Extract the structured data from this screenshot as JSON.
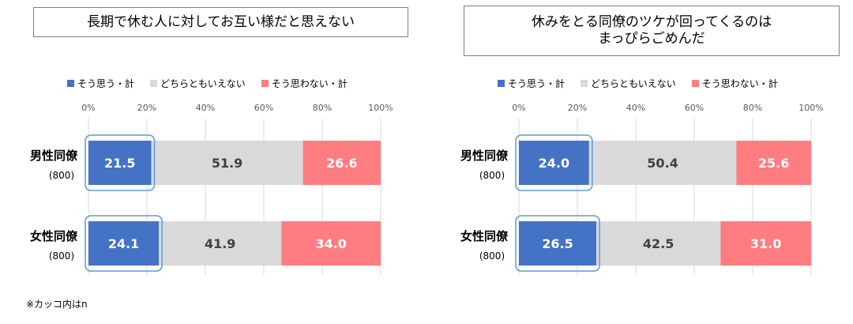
{
  "colors": {
    "agree": "#4472c4",
    "neutral": "#d9d9d9",
    "disagree": "#ff7c80",
    "highlight": "#5b9bd5"
  },
  "legend": [
    "そう思う・計",
    "どちらともいえない",
    "そう思わない・計"
  ],
  "footnote": "※カッコ内はn",
  "chart_data": [
    {
      "type": "bar",
      "orientation": "horizontal",
      "stacked": true,
      "title": "長期で休む人に対してお互い様だと思えない",
      "categories": [
        "男性同僚",
        "女性同僚"
      ],
      "category_notes": [
        "(800)",
        "(800)"
      ],
      "x_ticks": [
        "0%",
        "20%",
        "40%",
        "60%",
        "80%",
        "100%"
      ],
      "xlim": [
        0,
        100
      ],
      "grid": true,
      "legend_position": "top",
      "series": [
        {
          "name": "そう思う・計",
          "values": [
            21.5,
            24.1
          ]
        },
        {
          "name": "どちらともいえない",
          "values": [
            51.9,
            41.9
          ]
        },
        {
          "name": "そう思わない・計",
          "values": [
            26.6,
            34.0
          ]
        }
      ]
    },
    {
      "type": "bar",
      "orientation": "horizontal",
      "stacked": true,
      "title": "休みをとる同僚のツケが回ってくるのは\nまっぴらごめんだ",
      "categories": [
        "男性同僚",
        "女性同僚"
      ],
      "category_notes": [
        "(800)",
        "(800)"
      ],
      "x_ticks": [
        "0%",
        "20%",
        "40%",
        "60%",
        "80%",
        "100%"
      ],
      "xlim": [
        0,
        100
      ],
      "grid": true,
      "legend_position": "top",
      "series": [
        {
          "name": "そう思う・計",
          "values": [
            24.0,
            26.5
          ]
        },
        {
          "name": "どちらともいえない",
          "values": [
            50.4,
            42.5
          ]
        },
        {
          "name": "そう思わない・計",
          "values": [
            25.6,
            31.0
          ]
        }
      ]
    }
  ]
}
